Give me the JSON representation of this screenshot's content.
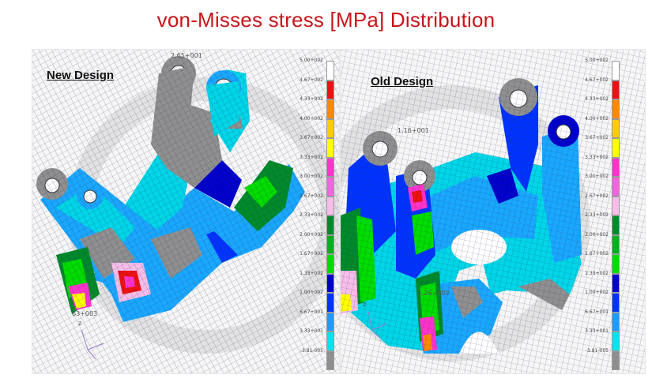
{
  "title": "von-Misses stress [MPa] Distribution",
  "left_panel": {
    "label": "New Design",
    "node_labels": [
      "2.65+001",
      "63+003"
    ],
    "axis_label": "z"
  },
  "right_panel": {
    "label": "Old Design",
    "node_labels": [
      "1.16+001",
      "1.26+002"
    ],
    "axis_label": "z"
  },
  "legend": {
    "ticks": [
      "5.00+002",
      "4.67+002",
      "4.33+002",
      "4.00+002",
      "3.67+002",
      "3.33+002",
      "3.00+002",
      "2.67+002",
      "2.33+002",
      "2.00+002",
      "1.67+002",
      "1.33+002",
      "1.00+002",
      "6.67+001",
      "3.33+001",
      "-3.81-005"
    ],
    "colors": [
      "#ffffff",
      "#ee1111",
      "#ff8800",
      "#ffcc00",
      "#ffff00",
      "#ff33cc",
      "#ee66dd",
      "#f7bde9",
      "#008a2a",
      "#00b01c",
      "#00dd00",
      "#0000cc",
      "#0033ff",
      "#1f9bff",
      "#00e5ee",
      "#8f8f8f"
    ]
  }
}
